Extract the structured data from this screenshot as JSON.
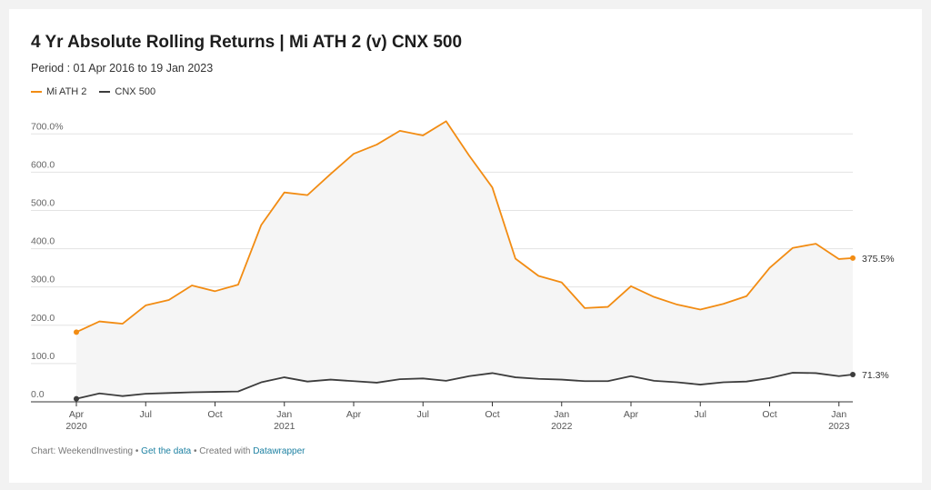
{
  "title": "4 Yr Absolute Rolling Returns | Mi ATH 2 (v) CNX 500",
  "subtitle": "Period : 01 Apr 2016 to 19 Jan 2023",
  "footer": {
    "chart_by": "Chart: WeekendInvesting",
    "sep1": " • ",
    "get_data": "Get the data",
    "sep2": " • Created with ",
    "created_with": "Datawrapper"
  },
  "chart_data": {
    "type": "line",
    "ylim": [
      0,
      760
    ],
    "grid": true,
    "legend_position": "top-left",
    "y_ticks": [
      {
        "value": 0,
        "label": "0.0"
      },
      {
        "value": 100,
        "label": "100.0"
      },
      {
        "value": 200,
        "label": "200.0"
      },
      {
        "value": 300,
        "label": "300.0"
      },
      {
        "value": 400,
        "label": "400.0"
      },
      {
        "value": 500,
        "label": "500.0"
      },
      {
        "value": 600,
        "label": "600.0"
      },
      {
        "value": 700,
        "label": "700.0%"
      }
    ],
    "x_ticks": [
      {
        "month": 0,
        "label": "Apr",
        "year": "2020"
      },
      {
        "month": 3,
        "label": "Jul",
        "year": ""
      },
      {
        "month": 6,
        "label": "Oct",
        "year": ""
      },
      {
        "month": 9,
        "label": "Jan",
        "year": "2021"
      },
      {
        "month": 12,
        "label": "Apr",
        "year": ""
      },
      {
        "month": 15,
        "label": "Jul",
        "year": ""
      },
      {
        "month": 18,
        "label": "Oct",
        "year": ""
      },
      {
        "month": 21,
        "label": "Jan",
        "year": "2022"
      },
      {
        "month": 24,
        "label": "Apr",
        "year": ""
      },
      {
        "month": 27,
        "label": "Jul",
        "year": ""
      },
      {
        "month": 30,
        "label": "Oct",
        "year": ""
      },
      {
        "month": 33,
        "label": "Jan",
        "year": "2023"
      }
    ],
    "x_range": [
      0,
      33.6
    ],
    "series": [
      {
        "name": "Mi ATH 2",
        "color": "#f28c13",
        "end_label": "375.5%",
        "points": [
          {
            "x": 0,
            "y": 182
          },
          {
            "x": 1,
            "y": 210
          },
          {
            "x": 2,
            "y": 204
          },
          {
            "x": 3,
            "y": 252
          },
          {
            "x": 4,
            "y": 266
          },
          {
            "x": 5,
            "y": 304
          },
          {
            "x": 6,
            "y": 289
          },
          {
            "x": 7,
            "y": 306
          },
          {
            "x": 8,
            "y": 462
          },
          {
            "x": 9,
            "y": 547
          },
          {
            "x": 10,
            "y": 540
          },
          {
            "x": 11,
            "y": 595
          },
          {
            "x": 12,
            "y": 648
          },
          {
            "x": 13,
            "y": 672
          },
          {
            "x": 14,
            "y": 708
          },
          {
            "x": 15,
            "y": 696
          },
          {
            "x": 16,
            "y": 733
          },
          {
            "x": 17,
            "y": 643
          },
          {
            "x": 18,
            "y": 560
          },
          {
            "x": 19,
            "y": 374
          },
          {
            "x": 20,
            "y": 329
          },
          {
            "x": 21,
            "y": 312
          },
          {
            "x": 22,
            "y": 245
          },
          {
            "x": 23,
            "y": 248
          },
          {
            "x": 24,
            "y": 302
          },
          {
            "x": 25,
            "y": 274
          },
          {
            "x": 26,
            "y": 254
          },
          {
            "x": 27,
            "y": 241
          },
          {
            "x": 28,
            "y": 256
          },
          {
            "x": 29,
            "y": 276
          },
          {
            "x": 30,
            "y": 350
          },
          {
            "x": 31,
            "y": 402
          },
          {
            "x": 32,
            "y": 413
          },
          {
            "x": 33,
            "y": 373
          },
          {
            "x": 33.6,
            "y": 375.5
          }
        ]
      },
      {
        "name": "CNX 500",
        "color": "#3d3d3d",
        "end_label": "71.3%",
        "points": [
          {
            "x": 0,
            "y": 8
          },
          {
            "x": 1,
            "y": 22
          },
          {
            "x": 2,
            "y": 15
          },
          {
            "x": 3,
            "y": 21
          },
          {
            "x": 4,
            "y": 23
          },
          {
            "x": 5,
            "y": 25
          },
          {
            "x": 6,
            "y": 26
          },
          {
            "x": 7,
            "y": 27
          },
          {
            "x": 8,
            "y": 51
          },
          {
            "x": 9,
            "y": 64
          },
          {
            "x": 10,
            "y": 53
          },
          {
            "x": 11,
            "y": 58
          },
          {
            "x": 12,
            "y": 54
          },
          {
            "x": 13,
            "y": 50
          },
          {
            "x": 14,
            "y": 59
          },
          {
            "x": 15,
            "y": 61
          },
          {
            "x": 16,
            "y": 55
          },
          {
            "x": 17,
            "y": 67
          },
          {
            "x": 18,
            "y": 75
          },
          {
            "x": 19,
            "y": 64
          },
          {
            "x": 20,
            "y": 60
          },
          {
            "x": 21,
            "y": 58
          },
          {
            "x": 22,
            "y": 54
          },
          {
            "x": 23,
            "y": 54
          },
          {
            "x": 24,
            "y": 67
          },
          {
            "x": 25,
            "y": 55
          },
          {
            "x": 26,
            "y": 51
          },
          {
            "x": 27,
            "y": 45
          },
          {
            "x": 28,
            "y": 51
          },
          {
            "x": 29,
            "y": 53
          },
          {
            "x": 30,
            "y": 62
          },
          {
            "x": 31,
            "y": 76
          },
          {
            "x": 32,
            "y": 75
          },
          {
            "x": 33,
            "y": 67
          },
          {
            "x": 33.6,
            "y": 71.3
          }
        ]
      }
    ]
  }
}
